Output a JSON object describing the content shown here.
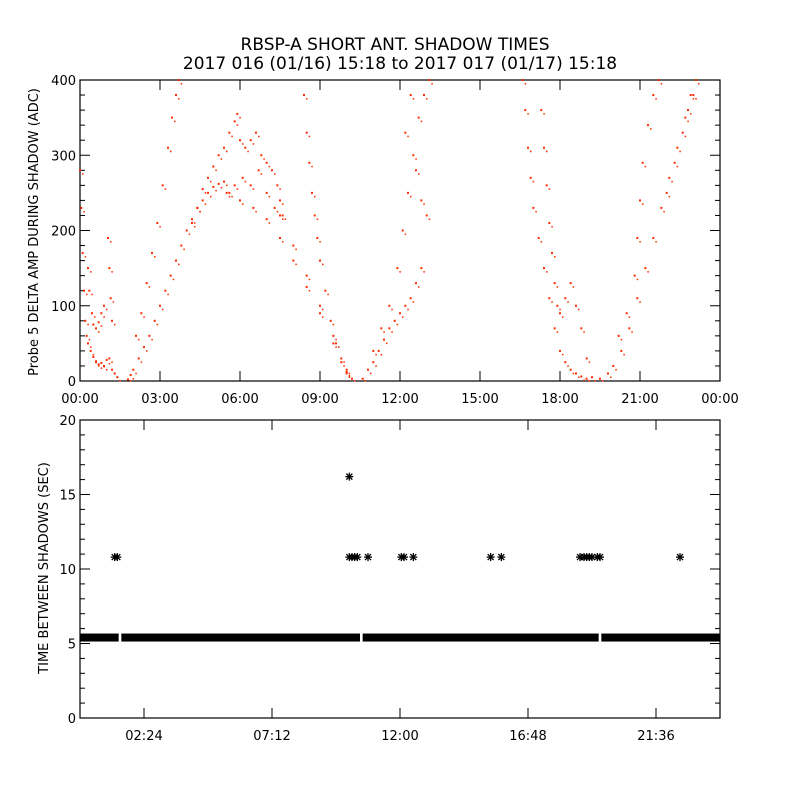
{
  "colors": {
    "scatter": "#ff2a00",
    "axis": "#000000",
    "marker": "#000000"
  },
  "chart_data": [
    {
      "type": "scatter",
      "title": "RBSP-A SHORT ANT. SHADOW TIMES",
      "subtitle": "2017 016 (01/16) 15:18 to 2017 017 (01/17) 15:18",
      "xlabel": "",
      "ylabel": "Probe 5 DELTA AMP DURING SHADOW (ADC)",
      "xlim": [
        0,
        24
      ],
      "ylim": [
        0,
        400
      ],
      "xticks": [
        0,
        3,
        6,
        9,
        12,
        15,
        18,
        21,
        24
      ],
      "xtick_labels": [
        "00:00",
        "03:00",
        "06:00",
        "09:00",
        "12:00",
        "15:00",
        "18:00",
        "21:00",
        "00:00"
      ],
      "yticks": [
        0,
        100,
        200,
        300,
        400
      ],
      "ytick_labels": [
        "0",
        "100",
        "200",
        "300",
        "400"
      ],
      "series": [
        {
          "name": "delta amp",
          "points": [
            [
              0.0,
              280
            ],
            [
              0.05,
              230
            ],
            [
              0.1,
              170
            ],
            [
              0.15,
              120
            ],
            [
              0.2,
              80
            ],
            [
              0.25,
              60
            ],
            [
              0.3,
              50
            ],
            [
              0.4,
              40
            ],
            [
              0.5,
              32
            ],
            [
              0.6,
              25
            ],
            [
              0.7,
              22
            ],
            [
              0.8,
              24
            ],
            [
              0.9,
              20
            ],
            [
              1.0,
              28
            ],
            [
              1.1,
              30
            ],
            [
              1.2,
              15
            ],
            [
              1.3,
              10
            ],
            [
              1.4,
              5
            ],
            [
              0.3,
              150
            ],
            [
              0.35,
              120
            ],
            [
              0.45,
              90
            ],
            [
              0.5,
              75
            ],
            [
              0.6,
              70
            ],
            [
              0.7,
              78
            ],
            [
              0.8,
              90
            ],
            [
              0.9,
              100
            ],
            [
              1.05,
              190
            ],
            [
              1.1,
              150
            ],
            [
              1.15,
              110
            ],
            [
              1.2,
              80
            ],
            [
              1.8,
              2
            ],
            [
              1.9,
              8
            ],
            [
              2.0,
              15
            ],
            [
              2.2,
              30
            ],
            [
              2.4,
              45
            ],
            [
              2.6,
              60
            ],
            [
              2.8,
              80
            ],
            [
              3.0,
              100
            ],
            [
              3.2,
              120
            ],
            [
              3.4,
              140
            ],
            [
              3.6,
              160
            ],
            [
              3.8,
              180
            ],
            [
              4.0,
              200
            ],
            [
              4.2,
              215
            ],
            [
              4.4,
              230
            ],
            [
              4.6,
              240
            ],
            [
              4.8,
              250
            ],
            [
              5.0,
              258
            ],
            [
              5.2,
              262
            ],
            [
              5.4,
              265
            ],
            [
              2.1,
              60
            ],
            [
              2.3,
              90
            ],
            [
              2.5,
              130
            ],
            [
              2.7,
              170
            ],
            [
              2.9,
              210
            ],
            [
              3.1,
              260
            ],
            [
              3.3,
              310
            ],
            [
              3.45,
              350
            ],
            [
              3.6,
              380
            ],
            [
              3.7,
              400
            ],
            [
              3.8,
              410
            ],
            [
              4.2,
              210
            ],
            [
              4.4,
              230
            ],
            [
              4.6,
              255
            ],
            [
              4.8,
              270
            ],
            [
              5.0,
              285
            ],
            [
              5.2,
              300
            ],
            [
              5.4,
              310
            ],
            [
              5.6,
              330
            ],
            [
              5.8,
              345
            ],
            [
              5.9,
              355
            ],
            [
              6.0,
              320
            ],
            [
              6.2,
              310
            ],
            [
              6.4,
              320
            ],
            [
              6.6,
              330
            ],
            [
              6.8,
              300
            ],
            [
              7.0,
              290
            ],
            [
              7.2,
              280
            ],
            [
              7.4,
              260
            ],
            [
              7.5,
              240
            ],
            [
              5.5,
              250
            ],
            [
              5.8,
              260
            ],
            [
              6.1,
              270
            ],
            [
              6.4,
              260
            ],
            [
              6.7,
              280
            ],
            [
              7.0,
              250
            ],
            [
              7.3,
              230
            ],
            [
              7.6,
              220
            ],
            [
              5.6,
              250
            ],
            [
              6.0,
              240
            ],
            [
              6.5,
              230
            ],
            [
              7.0,
              215
            ],
            [
              7.5,
              190
            ],
            [
              8.0,
              160
            ],
            [
              8.5,
              125
            ],
            [
              9.0,
              90
            ],
            [
              9.5,
              50
            ],
            [
              9.8,
              25
            ],
            [
              10.0,
              10
            ],
            [
              10.2,
              3
            ],
            [
              7.5,
              220
            ],
            [
              8.0,
              180
            ],
            [
              8.5,
              140
            ],
            [
              9.0,
              100
            ],
            [
              9.5,
              60
            ],
            [
              10.0,
              15
            ],
            [
              8.3,
              410
            ],
            [
              8.4,
              380
            ],
            [
              8.5,
              330
            ],
            [
              8.6,
              290
            ],
            [
              8.7,
              250
            ],
            [
              8.8,
              220
            ],
            [
              8.9,
              190
            ],
            [
              9.0,
              160
            ],
            [
              9.2,
              120
            ],
            [
              9.4,
              80
            ],
            [
              9.6,
              50
            ],
            [
              9.8,
              30
            ],
            [
              10.0,
              12
            ],
            [
              10.6,
              3
            ],
            [
              10.8,
              15
            ],
            [
              11.0,
              25
            ],
            [
              11.2,
              40
            ],
            [
              11.4,
              55
            ],
            [
              11.6,
              70
            ],
            [
              11.8,
              80
            ],
            [
              12.0,
              90
            ],
            [
              12.2,
              100
            ],
            [
              12.4,
              110
            ],
            [
              12.6,
              130
            ],
            [
              12.8,
              150
            ],
            [
              11.0,
              40
            ],
            [
              11.3,
              70
            ],
            [
              11.6,
              100
            ],
            [
              11.9,
              150
            ],
            [
              12.1,
              200
            ],
            [
              12.3,
              250
            ],
            [
              12.5,
              300
            ],
            [
              12.7,
              350
            ],
            [
              12.9,
              380
            ],
            [
              13.1,
              400
            ],
            [
              12.2,
              330
            ],
            [
              12.4,
              380
            ],
            [
              12.6,
              280
            ],
            [
              12.8,
              240
            ],
            [
              13.0,
              220
            ],
            [
              16.6,
              400
            ],
            [
              16.7,
              360
            ],
            [
              16.8,
              310
            ],
            [
              16.9,
              270
            ],
            [
              17.0,
              230
            ],
            [
              17.2,
              190
            ],
            [
              17.4,
              150
            ],
            [
              17.6,
              110
            ],
            [
              17.8,
              70
            ],
            [
              18.0,
              40
            ],
            [
              18.2,
              25
            ],
            [
              18.4,
              15
            ],
            [
              18.6,
              10
            ],
            [
              18.8,
              6
            ],
            [
              19.0,
              3
            ],
            [
              17.2,
              410
            ],
            [
              17.3,
              360
            ],
            [
              17.4,
              310
            ],
            [
              17.5,
              260
            ],
            [
              17.6,
              210
            ],
            [
              17.7,
              170
            ],
            [
              17.8,
              130
            ],
            [
              17.9,
              100
            ],
            [
              18.0,
              90
            ],
            [
              18.2,
              110
            ],
            [
              18.4,
              130
            ],
            [
              18.6,
              100
            ],
            [
              18.8,
              70
            ],
            [
              19.0,
              30
            ],
            [
              19.2,
              5
            ],
            [
              19.5,
              3
            ],
            [
              19.8,
              10
            ],
            [
              20.0,
              20
            ],
            [
              20.3,
              40
            ],
            [
              20.6,
              70
            ],
            [
              20.9,
              110
            ],
            [
              21.2,
              150
            ],
            [
              21.5,
              190
            ],
            [
              21.8,
              230
            ],
            [
              22.1,
              270
            ],
            [
              22.4,
              310
            ],
            [
              22.7,
              350
            ],
            [
              22.9,
              380
            ],
            [
              23.1,
              400
            ],
            [
              20.2,
              60
            ],
            [
              20.5,
              90
            ],
            [
              20.8,
              140
            ],
            [
              20.9,
              190
            ],
            [
              21.0,
              240
            ],
            [
              21.1,
              290
            ],
            [
              21.3,
              340
            ],
            [
              21.5,
              380
            ],
            [
              21.7,
              400
            ],
            [
              22.0,
              250
            ],
            [
              22.3,
              290
            ],
            [
              22.6,
              330
            ],
            [
              22.8,
              360
            ],
            [
              23.0,
              380
            ],
            [
              23.3,
              410
            ]
          ]
        }
      ]
    },
    {
      "type": "scatter",
      "title": "",
      "xlabel": "",
      "ylabel": "TIME BETWEEN SHADOWS (SEC)",
      "xlim": [
        0,
        24
      ],
      "ylim": [
        0,
        20
      ],
      "xticks": [
        2.4,
        7.2,
        12.0,
        16.8,
        21.6
      ],
      "xtick_labels": [
        "02:24",
        "07:12",
        "12:00",
        "16:48",
        "21:36"
      ],
      "yticks": [
        0,
        5,
        10,
        15,
        20
      ],
      "ytick_labels": [
        "0",
        "5",
        "10",
        "15",
        "20"
      ],
      "baseline": {
        "value": 5.4,
        "segments": [
          [
            0,
            1.45
          ],
          [
            1.55,
            10.5
          ],
          [
            10.6,
            19.45
          ],
          [
            19.55,
            24
          ]
        ]
      },
      "points": [
        [
          1.3,
          10.8
        ],
        [
          1.4,
          10.8
        ],
        [
          10.1,
          16.2
        ],
        [
          10.1,
          10.8
        ],
        [
          10.2,
          10.8
        ],
        [
          10.3,
          10.8
        ],
        [
          10.4,
          10.8
        ],
        [
          10.8,
          10.8
        ],
        [
          12.05,
          10.8
        ],
        [
          12.15,
          10.8
        ],
        [
          12.5,
          10.8
        ],
        [
          15.4,
          10.8
        ],
        [
          15.8,
          10.8
        ],
        [
          18.75,
          10.8
        ],
        [
          18.9,
          10.8
        ],
        [
          19.0,
          10.8
        ],
        [
          19.1,
          10.8
        ],
        [
          19.2,
          10.8
        ],
        [
          19.4,
          10.8
        ],
        [
          19.5,
          10.8
        ],
        [
          22.5,
          10.8
        ]
      ]
    }
  ]
}
